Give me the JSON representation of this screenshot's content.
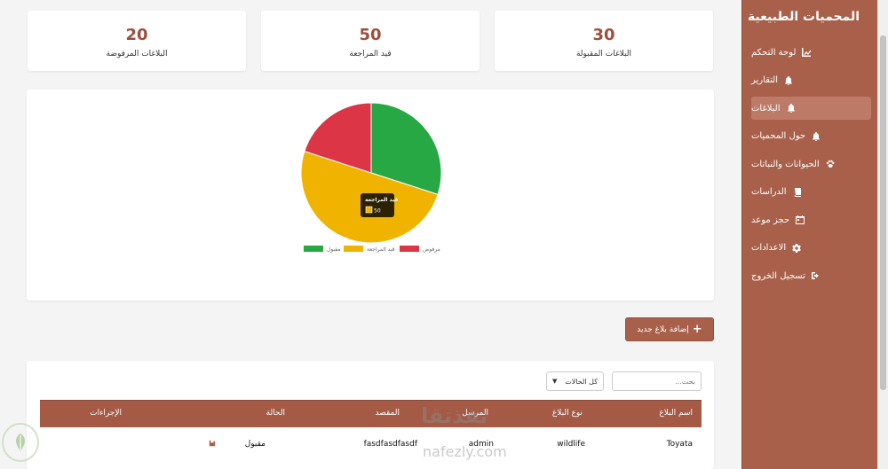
{
  "sidebar": {
    "title": "المحميات الطبيعية",
    "items": [
      {
        "label": "لوحة التحكم",
        "icon": "chart-icon",
        "active": false
      },
      {
        "label": "التقارير",
        "icon": "bell-icon",
        "active": false
      },
      {
        "label": "البلاغات",
        "icon": "bell-icon",
        "active": true
      },
      {
        "label": "حول المحميات",
        "icon": "bell-icon",
        "active": false
      },
      {
        "label": "الحيوانات والنباتات",
        "icon": "paw-icon",
        "active": false
      },
      {
        "label": "الدراسات",
        "icon": "book-icon",
        "active": false
      },
      {
        "label": "حجز موعد",
        "icon": "calendar-icon",
        "active": false
      },
      {
        "label": "الاعدادات",
        "icon": "gear-icon",
        "active": false
      },
      {
        "label": "تسجيل الخروج",
        "icon": "logout-icon",
        "active": false
      }
    ]
  },
  "stats": [
    {
      "value": "20",
      "label": "البلاغات المرفوضة"
    },
    {
      "value": "50",
      "label": "قيد المراجعة"
    },
    {
      "value": "30",
      "label": "البلاغات المقبولة"
    }
  ],
  "chart_data": {
    "type": "pie",
    "categories": [
      "مقبول",
      "قيد المراجعة",
      "مرفوض"
    ],
    "values": [
      30,
      50,
      20
    ],
    "colors": [
      "#28a745",
      "#f0b400",
      "#dc3545"
    ],
    "legend_position": "bottom",
    "tooltip": {
      "title": "قيد المراجعة",
      "value": "50"
    }
  },
  "add_button_label": "إضافة بلاغ جديد",
  "search": {
    "placeholder": "بحث..."
  },
  "status_filter": {
    "selected": "كل الحالات"
  },
  "table": {
    "headers": [
      "اسم البلاغ",
      "نوع البلاغ",
      "المرسل",
      "المقصد",
      "الحالة",
      "الإجراءات"
    ],
    "rows": [
      {
        "name": "Toyata",
        "type": "wildlife",
        "sender": "admin",
        "target": "fasdfasdfasdf",
        "status": "مقبول",
        "action_icon": "save-icon"
      }
    ]
  },
  "watermark": {
    "main": "نفذتقا",
    "sub": "nafezly.com"
  }
}
